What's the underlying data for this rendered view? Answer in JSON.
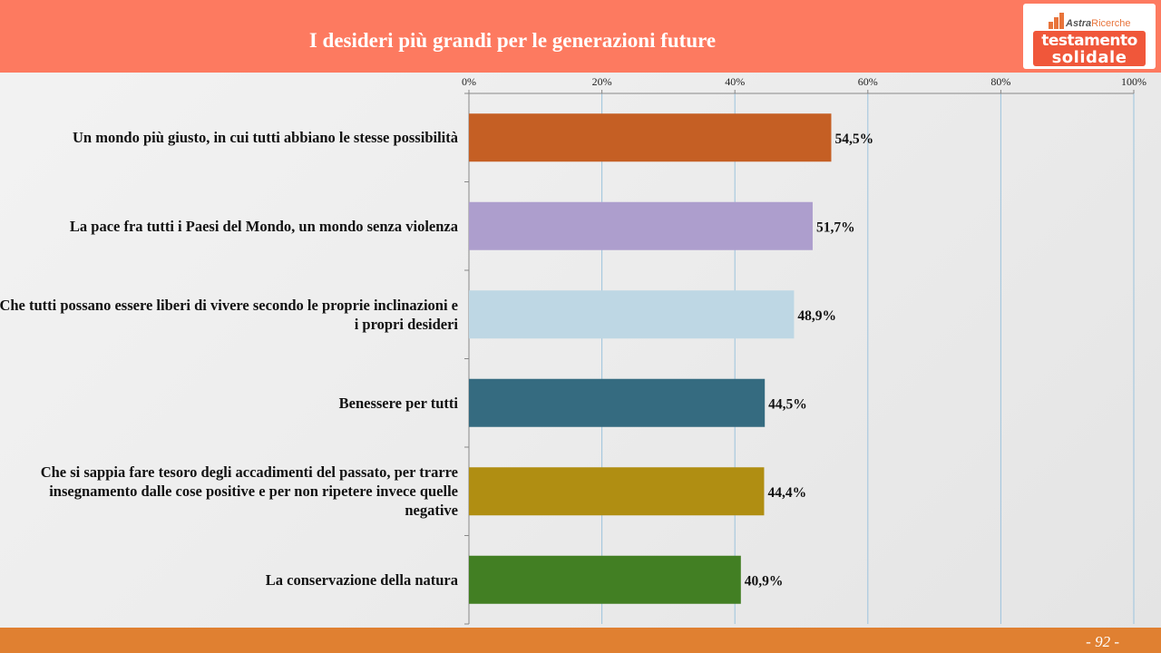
{
  "header": {
    "title": "I desideri più grandi per le generazioni future",
    "logo": {
      "brand": "Astra",
      "brand_sub": "Ricerche",
      "line1": "testamento",
      "line2": "solidale"
    }
  },
  "footer": {
    "page": "- 92 -"
  },
  "colors": {
    "header": "#fd7a60",
    "footer": "#e08031",
    "logo_box": "#f0573a",
    "gridline": "#9cc3dd"
  },
  "chart_data": {
    "type": "bar",
    "orientation": "horizontal",
    "title": "",
    "xlabel": "",
    "ylabel": "",
    "xlim": [
      0,
      100
    ],
    "ticks": [
      "0%",
      "20%",
      "40%",
      "60%",
      "80%",
      "100%"
    ],
    "grid": true,
    "categories": [
      "Un mondo più giusto, in cui tutti abbiano le stesse possibilità",
      "La pace fra tutti i Paesi del Mondo, un mondo senza violenza",
      "Che tutti possano essere liberi di vivere secondo le proprie inclinazioni e i propri desideri",
      "Benessere per tutti",
      "Che si sappia fare tesoro degli accadimenti del passato, per trarre insegnamento dalle cose positive e per non ripetere invece quelle negative",
      "La conservazione della natura"
    ],
    "values": [
      54.5,
      51.7,
      48.9,
      44.5,
      44.4,
      40.9
    ],
    "value_labels": [
      "54,5%",
      "51,7%",
      "48,9%",
      "44,5%",
      "44,4%",
      "40,9%"
    ],
    "bar_colors": [
      "#c55f24",
      "#ad9ecd",
      "#bed7e4",
      "#356b80",
      "#b08e12",
      "#427f23"
    ]
  }
}
